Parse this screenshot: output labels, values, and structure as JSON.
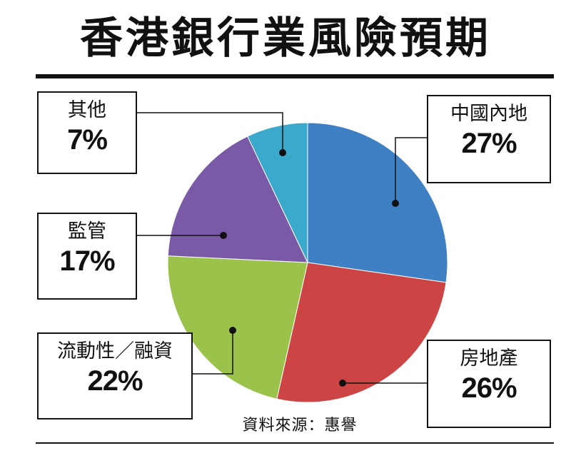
{
  "title": "香港銀行業風險預期",
  "source": "資料來源：惠譽",
  "chart_data": {
    "type": "pie",
    "slices": [
      {
        "name": "中國內地",
        "value": 27,
        "label": "27%",
        "color": "#3f7fc4"
      },
      {
        "name": "房地產",
        "value": 26,
        "label": "26%",
        "color": "#cc4444"
      },
      {
        "name": "流動性／融資",
        "value": 22,
        "label": "22%",
        "color": "#9bc24a"
      },
      {
        "name": "監管",
        "value": 17,
        "label": "17%",
        "color": "#7a5aa6"
      },
      {
        "name": "其他",
        "value": 7,
        "label": "7%",
        "color": "#3aa9cc"
      }
    ]
  }
}
